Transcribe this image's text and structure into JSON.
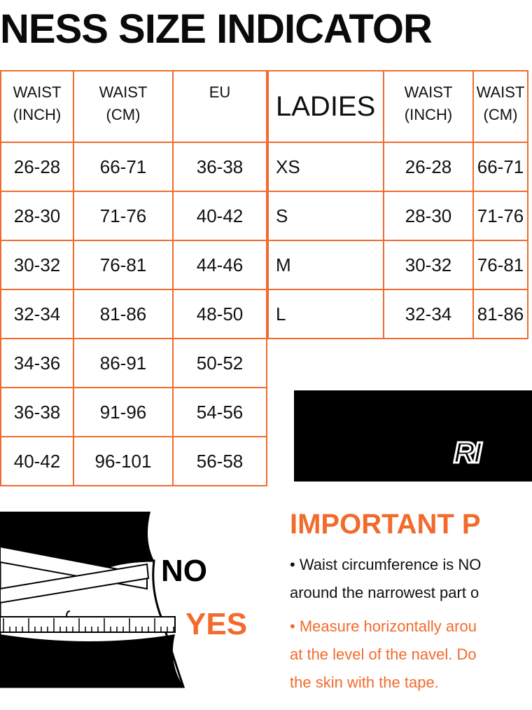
{
  "title": "NESS SIZE INDICATOR",
  "men_table": {
    "headers": [
      "WAIST\n(INCH)",
      "WAIST\n(CM)",
      "EU"
    ],
    "header_lines": [
      [
        "WAIST",
        "(INCH)"
      ],
      [
        "WAIST",
        "(CM)"
      ],
      [
        "EU",
        ""
      ]
    ],
    "rows": [
      [
        "26-28",
        "66-71",
        "36-38"
      ],
      [
        "28-30",
        "71-76",
        "40-42"
      ],
      [
        "30-32",
        "76-81",
        "44-46"
      ],
      [
        "32-34",
        "81-86",
        "48-50"
      ],
      [
        "34-36",
        "86-91",
        "50-52"
      ],
      [
        "36-38",
        "91-96",
        "54-56"
      ],
      [
        "40-42",
        "96-101",
        "56-58"
      ]
    ]
  },
  "ladies_table": {
    "label": "LADIES",
    "header_lines": [
      [
        "WAIST",
        "(INCH)"
      ],
      [
        "WAIST",
        "(CM)"
      ]
    ],
    "rows": [
      [
        "XS",
        "26-28",
        "66-71"
      ],
      [
        "S",
        "28-30",
        "71-76"
      ],
      [
        "M",
        "30-32",
        "76-81"
      ],
      [
        "L",
        "32-34",
        "81-86"
      ]
    ]
  },
  "banner": {
    "logo_text": "RI"
  },
  "important": {
    "heading": "IMPORTANT P",
    "lines": [
      "• Waist circumference is NO",
      "around the narrowest part o",
      "• Measure horizontally arou",
      "at the level of the navel. Do",
      "the skin with the tape."
    ]
  },
  "illustration": {
    "no_label": "NO",
    "yes_label": "YES"
  },
  "colors": {
    "accent": "#f26b2d",
    "text": "#111111"
  }
}
